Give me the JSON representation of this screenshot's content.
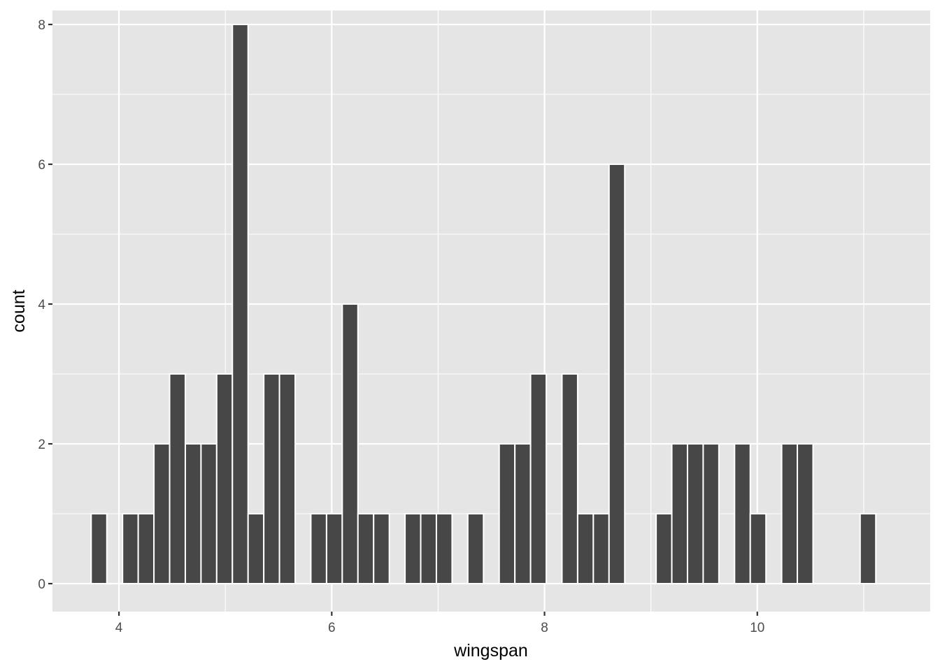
{
  "chart_data": {
    "type": "bar",
    "xlabel": "wingspan",
    "ylabel": "count",
    "xlim": [
      3.375,
      11.625
    ],
    "ylim": [
      -0.4,
      8.2
    ],
    "x_ticks": [
      4,
      6,
      8,
      10
    ],
    "x_tick_labels": [
      "4",
      "6",
      "8",
      "10"
    ],
    "y_ticks": [
      0,
      2,
      4,
      6,
      8
    ],
    "y_tick_labels": [
      "0",
      "2",
      "4",
      "6",
      "8"
    ],
    "grid": true,
    "bin_width": 0.1475,
    "bins": [
      {
        "x": 3.8125,
        "count": 1
      },
      {
        "x": 4.1075,
        "count": 1
      },
      {
        "x": 4.255,
        "count": 1
      },
      {
        "x": 4.4025,
        "count": 2
      },
      {
        "x": 4.55,
        "count": 3
      },
      {
        "x": 4.6975,
        "count": 2
      },
      {
        "x": 4.845,
        "count": 2
      },
      {
        "x": 4.9925,
        "count": 3
      },
      {
        "x": 5.14,
        "count": 8
      },
      {
        "x": 5.2875,
        "count": 1
      },
      {
        "x": 5.435,
        "count": 3
      },
      {
        "x": 5.5825,
        "count": 3
      },
      {
        "x": 5.8775,
        "count": 1
      },
      {
        "x": 6.025,
        "count": 1
      },
      {
        "x": 6.1725,
        "count": 4
      },
      {
        "x": 6.32,
        "count": 1
      },
      {
        "x": 6.4675,
        "count": 1
      },
      {
        "x": 6.7625,
        "count": 1
      },
      {
        "x": 6.91,
        "count": 1
      },
      {
        "x": 7.0575,
        "count": 1
      },
      {
        "x": 7.3525,
        "count": 1
      },
      {
        "x": 7.6475,
        "count": 2
      },
      {
        "x": 7.795,
        "count": 2
      },
      {
        "x": 7.9425,
        "count": 3
      },
      {
        "x": 8.2375,
        "count": 3
      },
      {
        "x": 8.385,
        "count": 1
      },
      {
        "x": 8.5325,
        "count": 1
      },
      {
        "x": 8.68,
        "count": 6
      },
      {
        "x": 9.1225,
        "count": 1
      },
      {
        "x": 9.27,
        "count": 2
      },
      {
        "x": 9.4175,
        "count": 2
      },
      {
        "x": 9.565,
        "count": 2
      },
      {
        "x": 9.86,
        "count": 2
      },
      {
        "x": 10.0075,
        "count": 1
      },
      {
        "x": 10.3025,
        "count": 2
      },
      {
        "x": 10.45,
        "count": 2
      },
      {
        "x": 11.04,
        "count": 1
      }
    ],
    "colors": {
      "panel_background": "#e5e5e5",
      "grid": "#ffffff",
      "bar_fill": "#474747",
      "bar_outline": "#ffffff",
      "tick_text": "#4d4d4d",
      "title_text": "#000000"
    }
  }
}
